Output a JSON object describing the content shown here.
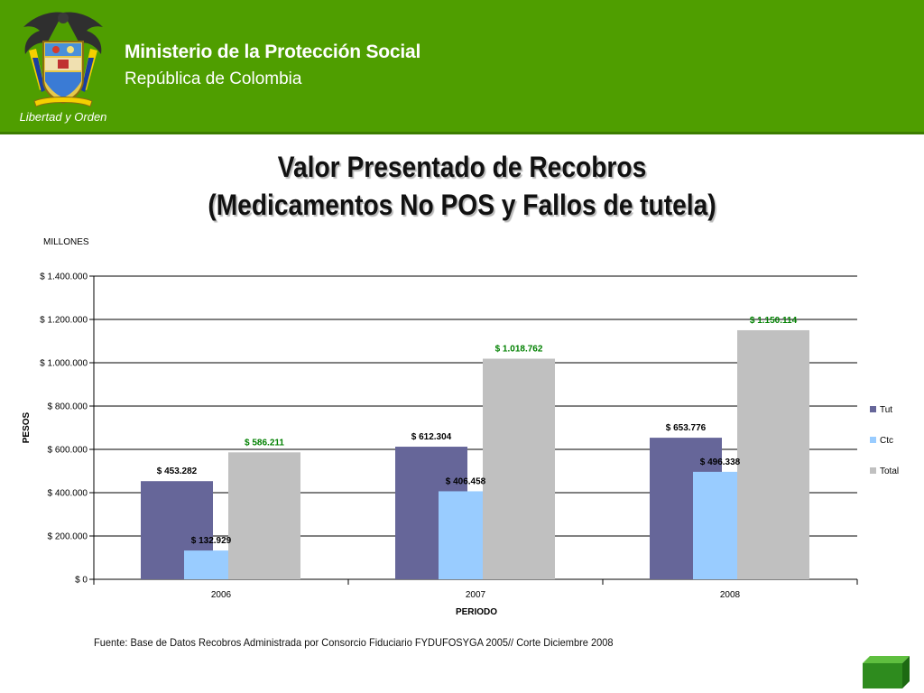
{
  "header": {
    "organization": "Ministerio de la Protección Social",
    "country": "República de Colombia",
    "crest_motto": "Libertad y Orden",
    "background_color": "#4f9e00"
  },
  "slide": {
    "title_line1": "Valor Presentado de Recobros",
    "title_line2": "(Medicamentos No POS y Fallos de tutela)",
    "source_note": "Fuente: Base de Datos Recobros Administrada por Consorcio Fiduciario FYDUFOSYGA 2005// Corte Diciembre 2008"
  },
  "chart_data": {
    "type": "bar",
    "title": "",
    "unit_note": "MILLONES",
    "xlabel": "PERIODO",
    "ylabel": "PESOS",
    "categories": [
      "2006",
      "2007",
      "2008"
    ],
    "ylim": [
      0,
      1400000
    ],
    "yticks": [
      {
        "value": 0,
        "label": "$ 0"
      },
      {
        "value": 200000,
        "label": "$ 200.000"
      },
      {
        "value": 400000,
        "label": "$ 400.000"
      },
      {
        "value": 600000,
        "label": "$ 600.000"
      },
      {
        "value": 800000,
        "label": "$ 800.000"
      },
      {
        "value": 1000000,
        "label": "$ 1.000.000"
      },
      {
        "value": 1200000,
        "label": "$ 1.200.000"
      },
      {
        "value": 1400000,
        "label": "$ 1.400.000"
      }
    ],
    "grid": true,
    "legend_position": "right",
    "series": [
      {
        "name": "Tut",
        "color": "#666699",
        "label_color": "#000000",
        "values": [
          453282,
          612304,
          653776
        ],
        "labels": [
          "$ 453.282",
          "$ 612.304",
          "$ 653.776"
        ]
      },
      {
        "name": "Ctc",
        "color": "#99ccff",
        "label_color": "#000000",
        "values": [
          132929,
          406458,
          496338
        ],
        "labels": [
          "$ 132.929",
          "$ 406.458",
          "$ 496.338"
        ]
      },
      {
        "name": "Total",
        "color": "#c0c0c0",
        "label_color": "#008000",
        "values": [
          586211,
          1018762,
          1150114
        ],
        "labels": [
          "$ 586.211",
          "$ 1.018.762",
          "$ 1.150.114"
        ]
      }
    ]
  }
}
